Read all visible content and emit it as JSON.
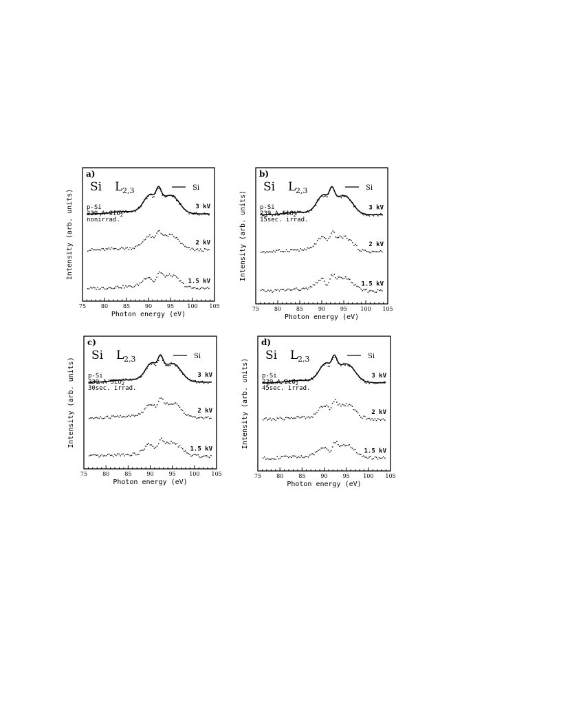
{
  "chart_data": [
    {
      "type": "line",
      "panel_label": "a)",
      "element": "Si",
      "edge": "L",
      "edge_sub": "2,3",
      "legend": [
        {
          "name": "Si",
          "style": "solid line"
        }
      ],
      "sample_lines": [
        "p-Si",
        "239 A SiO",
        "nonirrad."
      ],
      "xlabel": "Photon energy (eV)",
      "ylabel": "Intensity (arb. units)",
      "xlim": [
        75,
        105
      ],
      "xticks": [
        "75",
        "80",
        "85",
        "90",
        "95",
        "100",
        "105"
      ],
      "series": [
        {
          "name": "Si",
          "label": "",
          "offset": 0.7,
          "scale": 1.0,
          "dip": 0.0,
          "style": "solid"
        },
        {
          "name": "3 kV",
          "label": "3 kV",
          "offset": 0.7,
          "scale": 0.98,
          "dip": 0.03,
          "style": "dots"
        },
        {
          "name": "2 kV",
          "label": "2 kV",
          "offset": 0.38,
          "scale": 0.78,
          "dip": 0.08,
          "style": "dots"
        },
        {
          "name": "1.5 kV",
          "label": "1.5 kV",
          "offset": 0.04,
          "scale": 0.7,
          "dip": 0.18,
          "style": "dots"
        }
      ]
    },
    {
      "type": "line",
      "panel_label": "b)",
      "element": "Si",
      "edge": "L",
      "edge_sub": "2,3",
      "legend": [
        {
          "name": "Si",
          "style": "solid line"
        }
      ],
      "sample_lines": [
        "p-Si",
        "239 A SiO",
        "15sec. irrad."
      ],
      "xlabel": "Photon energy (eV)",
      "ylabel": "Intensity (arb. units)",
      "xlim": [
        75,
        105
      ],
      "xticks": [
        "75",
        "80",
        "85",
        "90",
        "95",
        "100",
        "105"
      ],
      "series": [
        {
          "name": "Si",
          "label": "",
          "offset": 0.7,
          "scale": 1.0,
          "dip": 0.0,
          "style": "solid"
        },
        {
          "name": "3 kV",
          "label": "3 kV",
          "offset": 0.7,
          "scale": 0.98,
          "dip": 0.03,
          "style": "dots"
        },
        {
          "name": "2 kV",
          "label": "2 kV",
          "offset": 0.38,
          "scale": 0.78,
          "dip": 0.1,
          "style": "dots"
        },
        {
          "name": "1.5 kV",
          "label": "1.5 kV",
          "offset": 0.04,
          "scale": 0.7,
          "dip": 0.2,
          "style": "dots"
        }
      ]
    },
    {
      "type": "line",
      "panel_label": "c)",
      "element": "Si",
      "edge": "L",
      "edge_sub": "2,3",
      "legend": [
        {
          "name": "Si",
          "style": "solid line"
        }
      ],
      "sample_lines": [
        "p-Si",
        "239 A SiO",
        "30sec. irrad."
      ],
      "xlabel": "Photon energy (eV)",
      "ylabel": "Intensity (arb. units)",
      "xlim": [
        75,
        105
      ],
      "xticks": [
        "75",
        "80",
        "85",
        "90",
        "95",
        "100",
        "105"
      ],
      "series": [
        {
          "name": "Si",
          "label": "",
          "offset": 0.7,
          "scale": 1.0,
          "dip": 0.0,
          "style": "solid"
        },
        {
          "name": "3 kV",
          "label": "3 kV",
          "offset": 0.7,
          "scale": 0.98,
          "dip": 0.03,
          "style": "dots"
        },
        {
          "name": "2 kV",
          "label": "2 kV",
          "offset": 0.38,
          "scale": 0.8,
          "dip": 0.08,
          "style": "dots"
        },
        {
          "name": "1.5 kV",
          "label": "1.5 kV",
          "offset": 0.04,
          "scale": 0.72,
          "dip": 0.16,
          "style": "dots"
        }
      ]
    },
    {
      "type": "line",
      "panel_label": "d)",
      "element": "Si",
      "edge": "L",
      "edge_sub": "2,3",
      "legend": [
        {
          "name": "Si",
          "style": "solid line"
        }
      ],
      "sample_lines": [
        "p-Si",
        "239 A SiO",
        "45sec. irrad."
      ],
      "xlabel": "Photon energy (eV)",
      "ylabel": "Intensity (arb. units)",
      "xlim": [
        75,
        105
      ],
      "xticks": [
        "75",
        "80",
        "85",
        "90",
        "95",
        "100",
        "105"
      ],
      "series": [
        {
          "name": "Si",
          "label": "",
          "offset": 0.7,
          "scale": 1.0,
          "dip": 0.0,
          "style": "solid"
        },
        {
          "name": "3 kV",
          "label": "3 kV",
          "offset": 0.7,
          "scale": 0.98,
          "dip": 0.03,
          "style": "dots"
        },
        {
          "name": "2 kV",
          "label": "2 kV",
          "offset": 0.38,
          "scale": 0.78,
          "dip": 0.1,
          "style": "dots"
        },
        {
          "name": "1.5 kV",
          "label": "1.5 kV",
          "offset": 0.04,
          "scale": 0.7,
          "dip": 0.2,
          "style": "dots"
        }
      ]
    }
  ]
}
